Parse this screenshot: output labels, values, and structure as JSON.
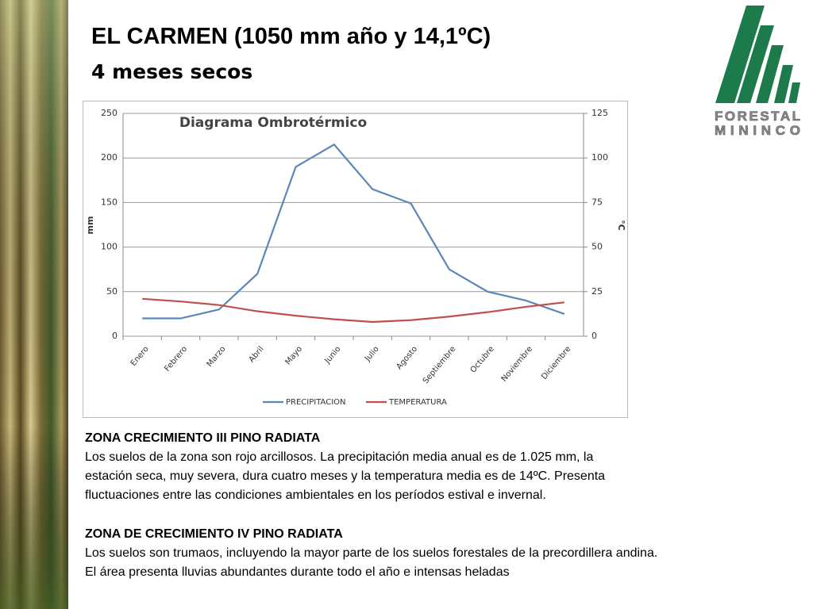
{
  "slide": {
    "title": "EL CARMEN (1050 mm año y 14,1ºC)",
    "subtitle": "4 meses secos",
    "logo": [
      "FORESTAL",
      "MININCO"
    ],
    "sections": [
      {
        "heading": "ZONA CRECIMIENTO III PINO RADIATA",
        "lines": [
          "Los suelos de la zona son rojo arcillosos. La precipitación media anual es de 1.025 mm, la",
          "estación seca, muy severa, dura cuatro meses y la temperatura media es de 14ºC.  Presenta",
          "fluctuaciones entre las condiciones ambientales en los períodos estival e invernal."
        ]
      },
      {
        "heading": "ZONA DE CRECIMIENTO IV PINO RADIATA",
        "lines": [
          "Los suelos son trumaos, incluyendo la mayor parte de los suelos forestales de la precordillera andina.",
          "El área presenta lluvias abundantes durante todo el año e intensas heladas"
        ]
      }
    ]
  },
  "chart_data": {
    "type": "line",
    "title": "Diagrama Ombrotérmico",
    "y_label": "mm",
    "y2_label": "°C",
    "categories": [
      "Enero",
      "Febrero",
      "Marzo",
      "Abril",
      "Mayo",
      "Junio",
      "Julio",
      "Agosto",
      "Septiembre",
      "Octubre",
      "Noviembre",
      "Diciembre"
    ],
    "series": [
      {
        "name": "PRECIPITACION",
        "color": "#5b86b9",
        "values": [
          20,
          20,
          30,
          70,
          190,
          215,
          165,
          149,
          75,
          50,
          40,
          25
        ]
      },
      {
        "name": "TEMPERATURA",
        "color": "#c0504d",
        "axis": "y2",
        "values": [
          21,
          19.5,
          17.5,
          14,
          11.5,
          9.5,
          8,
          9,
          11,
          13.5,
          16.5,
          19
        ]
      }
    ],
    "ylim": [
      0,
      250
    ],
    "yticks": [
      0,
      50,
      100,
      150,
      200,
      250
    ],
    "y2lim": [
      0,
      125
    ],
    "y2ticks": [
      0,
      25,
      50,
      75,
      100,
      125
    ],
    "grid": true,
    "legend": "bottom"
  }
}
